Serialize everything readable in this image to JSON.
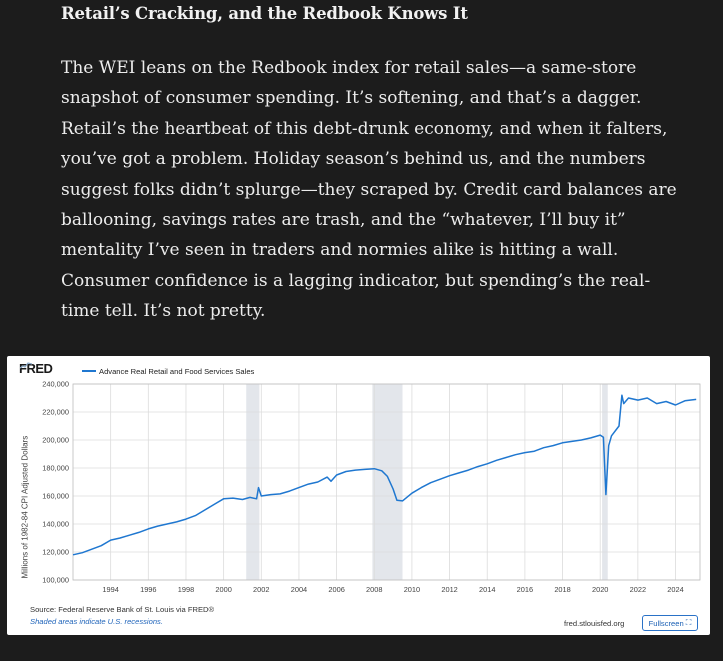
{
  "article": {
    "heading": "Retail’s Cracking, and the Redbook Knows It",
    "lines": [
      "The WEI leans on the Redbook index for retail sales—a same-store",
      "snapshot of consumer spending. It’s softening, and that’s a dagger.",
      "Retail’s the heartbeat of this debt-drunk economy, and when it falters,",
      "you’ve got a problem. Holiday season’s behind us, and the numbers",
      "suggest folks didn’t splurge—they scraped by. Credit card balances are",
      "ballooning, savings rates are trash, and the “whatever, I’ll buy it”",
      "mentality I’ve seen in traders and normies alike is hitting a wall.",
      "Consumer confidence is a lagging indicator, but spending’s the real-",
      "time tell. It’s not pretty."
    ]
  },
  "chart": {
    "logo": "FRED",
    "source": "Source: Federal Reserve Bank of St. Louis via FRED®",
    "note": "Shaded areas indicate U.S. recessions.",
    "site": "fred.stlouisfed.org",
    "fullscreen_label": "Fullscreen",
    "icons": {
      "fullscreen": "fullscreen-icon",
      "logo_graph": "mini-graph-icon"
    },
    "colors": {
      "line": "#1f77d0",
      "recession": "#e3e6eb",
      "grid": "#dcdcdc"
    }
  },
  "chart_data": {
    "type": "line",
    "title": "",
    "xlabel": "",
    "ylabel": "Millions of 1982-84 CPI Adjusted Dollars",
    "xlim": [
      1992.0,
      2025.3
    ],
    "ylim": [
      100000,
      240000
    ],
    "yticks": [
      100000,
      120000,
      140000,
      160000,
      180000,
      200000,
      220000,
      240000
    ],
    "ytick_labels": [
      "100,000",
      "120,000",
      "140,000",
      "160,000",
      "180,000",
      "200,000",
      "220,000",
      "240,000"
    ],
    "xticks": [
      1994,
      1996,
      1998,
      2000,
      2002,
      2004,
      2006,
      2008,
      2010,
      2012,
      2014,
      2016,
      2018,
      2020,
      2022,
      2024
    ],
    "xtick_labels": [
      "1994",
      "1996",
      "1998",
      "2000",
      "2002",
      "2004",
      "2006",
      "2008",
      "2010",
      "2012",
      "2014",
      "2016",
      "2018",
      "2020",
      "2022",
      "2024"
    ],
    "grid": true,
    "recessions": [
      [
        2001.2,
        2001.9
      ],
      [
        2007.9,
        2009.5
      ],
      [
        2020.1,
        2020.4
      ]
    ],
    "series": [
      {
        "name": "Advance Real Retail and Food Services Sales",
        "x": [
          1992.0,
          1992.5,
          1993.0,
          1993.5,
          1994.0,
          1994.5,
          1995.0,
          1995.5,
          1996.0,
          1996.5,
          1997.0,
          1997.5,
          1998.0,
          1998.5,
          1999.0,
          1999.5,
          2000.0,
          2000.5,
          2001.0,
          2001.4,
          2001.75,
          2001.85,
          2002.0,
          2002.5,
          2003.0,
          2003.5,
          2004.0,
          2004.5,
          2005.0,
          2005.5,
          2005.7,
          2006.0,
          2006.5,
          2007.0,
          2007.5,
          2008.0,
          2008.4,
          2008.7,
          2009.0,
          2009.2,
          2009.5,
          2010.0,
          2010.5,
          2011.0,
          2011.5,
          2012.0,
          2012.5,
          2013.0,
          2013.5,
          2014.0,
          2014.5,
          2015.0,
          2015.5,
          2016.0,
          2016.5,
          2017.0,
          2017.5,
          2018.0,
          2018.5,
          2019.0,
          2019.5,
          2020.0,
          2020.17,
          2020.3,
          2020.45,
          2020.6,
          2021.0,
          2021.15,
          2021.25,
          2021.5,
          2022.0,
          2022.5,
          2023.0,
          2023.5,
          2024.0,
          2024.5,
          2025.1
        ],
        "values": [
          118000,
          119500,
          122000,
          124500,
          128500,
          130000,
          132000,
          134000,
          136500,
          138500,
          140000,
          141500,
          143500,
          146000,
          150000,
          154000,
          158000,
          158500,
          157500,
          159000,
          158000,
          166000,
          160000,
          161000,
          161500,
          163500,
          166000,
          168500,
          170000,
          173500,
          170500,
          175000,
          177500,
          178500,
          179000,
          179500,
          178000,
          174000,
          165000,
          157000,
          156500,
          162000,
          166000,
          169500,
          172000,
          174500,
          176500,
          178500,
          181000,
          183000,
          185500,
          187500,
          189500,
          191000,
          192000,
          194500,
          196000,
          198000,
          199000,
          200000,
          201500,
          203500,
          202000,
          161000,
          196000,
          203000,
          210000,
          232000,
          226000,
          230000,
          228500,
          230000,
          226000,
          227500,
          225000,
          228000,
          229000
        ]
      }
    ]
  }
}
